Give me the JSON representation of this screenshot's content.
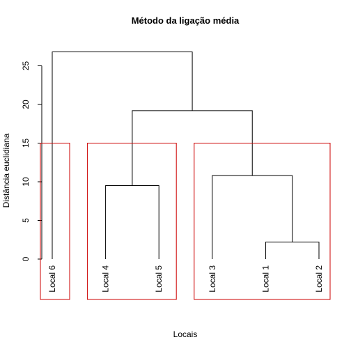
{
  "chart_data": {
    "type": "dendrogram",
    "title": "Método da ligação média",
    "xlabel": "Locais",
    "ylabel": "Distância euclidiana",
    "ylim": [
      0,
      25
    ],
    "yticks": [
      0,
      5,
      10,
      15,
      20,
      25
    ],
    "grid": false,
    "leaves": [
      "Local 6",
      "Local 4",
      "Local 5",
      "Local 3",
      "Local 1",
      "Local 2"
    ],
    "merges": [
      {
        "left": "Local 1",
        "right": "Local 2",
        "height": 2.2
      },
      {
        "left": "Local 4",
        "right": "Local 5",
        "height": 9.5
      },
      {
        "left": "Local 3",
        "right": "Local 1 + Local 2",
        "height": 10.8
      },
      {
        "left": "Local 4 + Local 5",
        "right": "Local 3 + Local 1 + Local 2",
        "height": 19.2
      },
      {
        "left": "Local 6",
        "right": "Local 4 + Local 5 + Local 3 + Local 1 + Local 2",
        "height": 26.8
      }
    ],
    "cut_height": 15,
    "clusters": [
      [
        "Local 6"
      ],
      [
        "Local 4",
        "Local 5"
      ],
      [
        "Local 3",
        "Local 1",
        "Local 2"
      ]
    ],
    "colors": {
      "tree": "#000000",
      "clusters": "#cc0000"
    }
  }
}
